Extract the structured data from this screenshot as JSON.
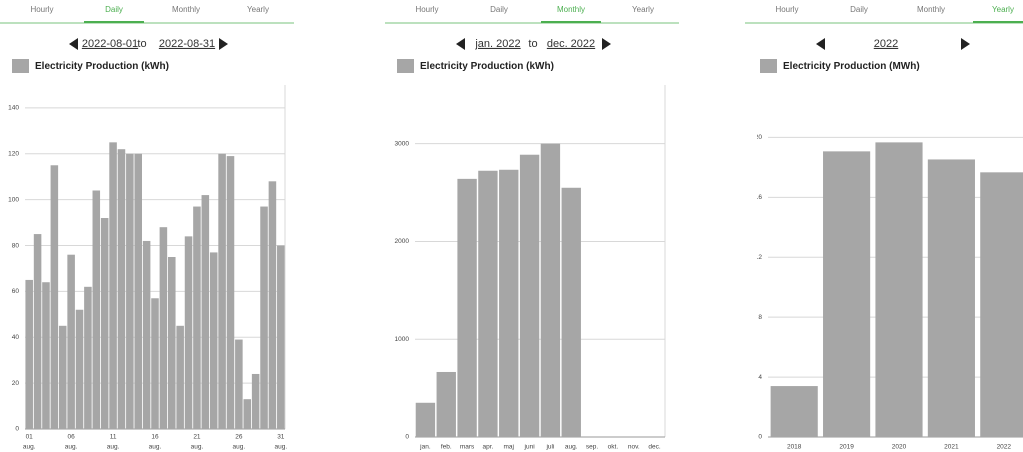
{
  "panels": [
    {
      "tabs": [
        "Hourly",
        "Daily",
        "Monthly",
        "Yearly"
      ],
      "selected_tab": 1,
      "nav": {
        "from": "2022-08-01",
        "sep": "to",
        "to": "2022-08-31"
      }
    },
    {
      "tabs": [
        "Hourly",
        "Daily",
        "Monthly",
        "Yearly"
      ],
      "selected_tab": 2,
      "nav": {
        "from": "jan. 2022",
        "sep": "to",
        "to": "dec. 2022"
      }
    },
    {
      "tabs": [
        "Hourly",
        "Daily",
        "Monthly",
        "Yearly"
      ],
      "selected_tab": 3,
      "nav": {
        "from": "2022"
      }
    }
  ],
  "chart_data": [
    {
      "type": "bar",
      "grid": true,
      "categories": [
        [
          "01",
          "aug."
        ],
        null,
        null,
        null,
        null,
        [
          "06",
          "aug."
        ],
        null,
        null,
        null,
        null,
        [
          "11",
          "aug."
        ],
        null,
        null,
        null,
        null,
        [
          "16",
          "aug."
        ],
        null,
        null,
        null,
        null,
        [
          "21",
          "aug."
        ],
        null,
        null,
        null,
        null,
        [
          "26",
          "aug."
        ],
        null,
        null,
        null,
        null,
        [
          "31",
          "aug."
        ]
      ],
      "series": [
        {
          "name": "Electricity Production (kWh)",
          "color": "#a6a6a6",
          "values": [
            65,
            85,
            64,
            115,
            45,
            76,
            52,
            62,
            104,
            92,
            125,
            122,
            120,
            120,
            82,
            57,
            88,
            75,
            45,
            84,
            97,
            102,
            77,
            120,
            119,
            39,
            13,
            24,
            97,
            108,
            80
          ]
        }
      ],
      "ylim": [
        0,
        150
      ],
      "yticks": [
        0,
        20,
        40,
        60,
        80,
        100,
        120,
        140
      ]
    },
    {
      "type": "bar",
      "grid": true,
      "categories": [
        "jan.",
        "feb.",
        "mars",
        "apr.",
        "maj",
        "juni",
        "juli",
        "aug.",
        "sep.",
        "okt.",
        "nov.",
        "dec."
      ],
      "series": [
        {
          "name": "Electricity Production (kWh)",
          "color": "#a6a6a6",
          "values": [
            350,
            665,
            2640,
            2723,
            2733,
            2887,
            3000,
            2549,
            null,
            null,
            null,
            null
          ]
        }
      ],
      "ylim": [
        0,
        3600
      ],
      "yticks": [
        0,
        1000,
        2000,
        3000
      ]
    },
    {
      "type": "bar",
      "grid": true,
      "categories": [
        "2018",
        "2019",
        "2020",
        "2021",
        "2022"
      ],
      "series": [
        {
          "name": "Electricity Production (MWh)",
          "color": "#a6a6a6",
          "values": [
            3.4,
            19.07,
            19.67,
            18.53,
            17.67
          ]
        }
      ],
      "ylim": [
        0,
        23.5
      ],
      "yticks": [
        0,
        4,
        8,
        12,
        16,
        20
      ]
    }
  ]
}
